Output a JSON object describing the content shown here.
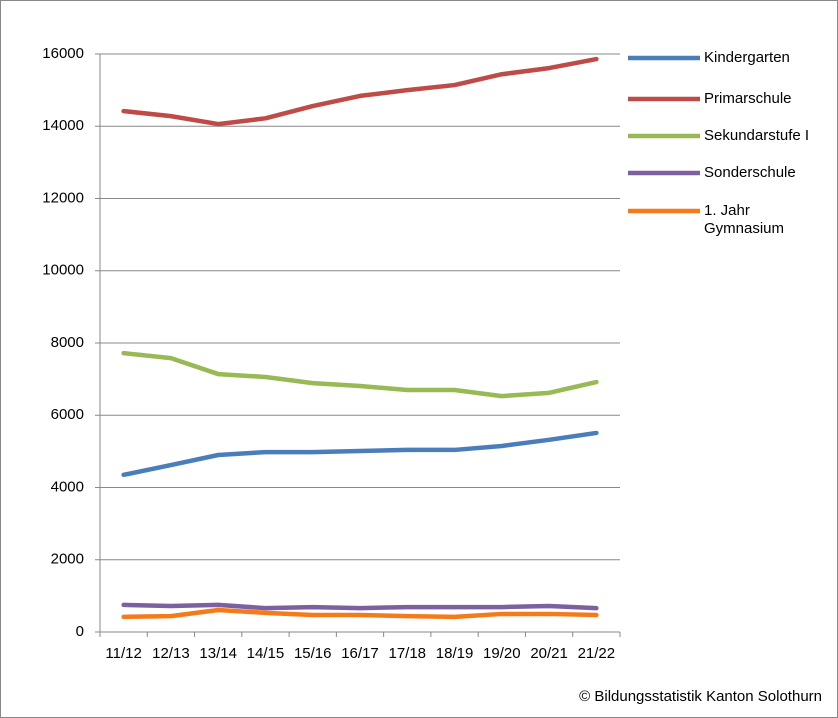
{
  "chart_data": {
    "type": "line",
    "categories": [
      "11/12",
      "12/13",
      "13/14",
      "14/15",
      "15/16",
      "16/17",
      "17/18",
      "18/19",
      "19/20",
      "20/21",
      "21/22"
    ],
    "series": [
      {
        "name": "Kindergarten",
        "color": "#4a7ebb",
        "values": [
          4350,
          4620,
          4900,
          4980,
          4980,
          5010,
          5040,
          5040,
          5150,
          5320,
          5510
        ]
      },
      {
        "name": "Primarschule",
        "color": "#be4b48",
        "values": [
          14420,
          14280,
          14060,
          14220,
          14560,
          14840,
          15000,
          15140,
          15440,
          15610,
          15860
        ]
      },
      {
        "name": "Sekundarstufe I",
        "color": "#98b954",
        "values": [
          7720,
          7580,
          7140,
          7060,
          6890,
          6810,
          6700,
          6700,
          6530,
          6620,
          6920
        ]
      },
      {
        "name": "Sonderschule",
        "color": "#7d60a0",
        "values": [
          750,
          720,
          750,
          660,
          690,
          660,
          690,
          690,
          690,
          720,
          660
        ]
      },
      {
        "name": "1. Jahr Gymnasium",
        "color": "#f57b1a",
        "values": [
          420,
          440,
          610,
          530,
          470,
          470,
          440,
          420,
          500,
          500,
          470
        ]
      }
    ],
    "ylim": [
      0,
      16000
    ],
    "yticks": [
      0,
      2000,
      4000,
      6000,
      8000,
      10000,
      12000,
      14000,
      16000
    ],
    "grid": true,
    "source": "© Bildungsstatistik Kanton Solothurn"
  }
}
